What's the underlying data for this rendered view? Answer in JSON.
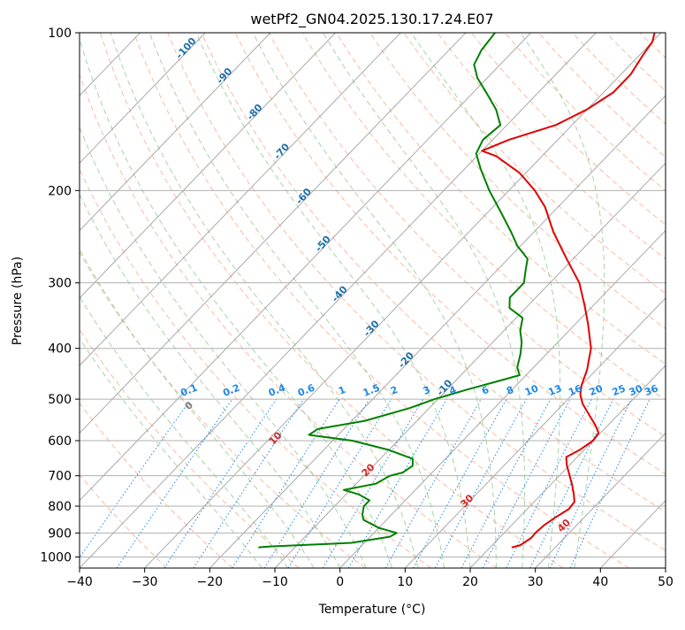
{
  "chart_data": {
    "type": "line",
    "title": "wetPf2_GN04.2025.130.17.24.E07",
    "xlabel": "Temperature (°C)",
    "ylabel": "Pressure (hPa)",
    "xlim": [
      -40,
      50
    ],
    "ylim": [
      1050,
      100
    ],
    "y_scale": "log",
    "skew": "skew-T",
    "grid": true,
    "x_ticks": [
      -40,
      -30,
      -20,
      -10,
      0,
      10,
      20,
      30,
      40,
      50
    ],
    "x_tick_labels": [
      "−40",
      "−30",
      "−20",
      "−10",
      "0",
      "10",
      "20",
      "30",
      "40",
      "50"
    ],
    "y_ticks": [
      100,
      200,
      300,
      400,
      500,
      600,
      700,
      800,
      900,
      1000
    ],
    "y_tick_labels": [
      "100",
      "200",
      "300",
      "400",
      "500",
      "600",
      "700",
      "800",
      "900",
      "1000"
    ],
    "colors": {
      "temperature": "#e00000",
      "dewpoint": "#008000",
      "isotherm": "#9a9a9a",
      "dry_adiabat": "#f4a582",
      "moist_adiabat": "#8fcb8f",
      "mixing_ratio": "#1e88e5",
      "dry_adiabat_label": "#d62728",
      "isotherm_label": "#1f6fa8"
    },
    "series": [
      {
        "key": "temperature",
        "color": "#e00000",
        "points": [
          [
            959,
            23.3
          ],
          [
            950,
            24.3
          ],
          [
            920,
            24.9
          ],
          [
            900,
            24.8
          ],
          [
            870,
            25.0
          ],
          [
            840,
            25.6
          ],
          [
            810,
            26.4
          ],
          [
            785,
            26.2
          ],
          [
            760,
            25.0
          ],
          [
            730,
            23.4
          ],
          [
            700,
            21.6
          ],
          [
            670,
            19.7
          ],
          [
            645,
            18.3
          ],
          [
            625,
            19.3
          ],
          [
            600,
            20.0
          ],
          [
            580,
            19.7
          ],
          [
            560,
            18.0
          ],
          [
            540,
            16.0
          ],
          [
            510,
            12.9
          ],
          [
            490,
            11.2
          ],
          [
            470,
            10.0
          ],
          [
            440,
            8.6
          ],
          [
            400,
            6.0
          ],
          [
            360,
            2.0
          ],
          [
            330,
            -1.5
          ],
          [
            300,
            -5.5
          ],
          [
            270,
            -11.0
          ],
          [
            240,
            -17.0
          ],
          [
            215,
            -22.0
          ],
          [
            200,
            -26.0
          ],
          [
            185,
            -31.0
          ],
          [
            172,
            -37.0
          ],
          [
            168,
            -40.0
          ],
          [
            160,
            -37.5
          ],
          [
            150,
            -32.5
          ],
          [
            140,
            -30.0
          ],
          [
            130,
            -28.5
          ],
          [
            120,
            -28.5
          ],
          [
            110,
            -29.5
          ],
          [
            104,
            -30.0
          ],
          [
            100,
            -31.0
          ]
        ]
      },
      {
        "key": "dewpoint",
        "color": "#008000",
        "points": [
          [
            959,
            -15.6
          ],
          [
            955,
            -14.0
          ],
          [
            940,
            -2.0
          ],
          [
            915,
            3.0
          ],
          [
            900,
            3.5
          ],
          [
            880,
            0.0
          ],
          [
            850,
            -3.5
          ],
          [
            830,
            -4.5
          ],
          [
            800,
            -5.5
          ],
          [
            780,
            -5.5
          ],
          [
            760,
            -8.0
          ],
          [
            745,
            -11.0
          ],
          [
            725,
            -7.0
          ],
          [
            700,
            -6.0
          ],
          [
            690,
            -4.5
          ],
          [
            670,
            -4.0
          ],
          [
            650,
            -5.0
          ],
          [
            625,
            -10.0
          ],
          [
            600,
            -17.0
          ],
          [
            585,
            -24.5
          ],
          [
            570,
            -24.0
          ],
          [
            550,
            -18.0
          ],
          [
            520,
            -13.0
          ],
          [
            500,
            -10.5
          ],
          [
            480,
            -7.0
          ],
          [
            460,
            -3.0
          ],
          [
            450,
            -1.0
          ],
          [
            435,
            -2.5
          ],
          [
            410,
            -4.0
          ],
          [
            390,
            -5.5
          ],
          [
            370,
            -7.5
          ],
          [
            350,
            -9.0
          ],
          [
            335,
            -12.5
          ],
          [
            320,
            -14.0
          ],
          [
            300,
            -14.0
          ],
          [
            285,
            -15.5
          ],
          [
            270,
            -17.0
          ],
          [
            255,
            -20.5
          ],
          [
            240,
            -23.5
          ],
          [
            220,
            -28.0
          ],
          [
            200,
            -33.0
          ],
          [
            182,
            -37.5
          ],
          [
            170,
            -40.5
          ],
          [
            160,
            -41.5
          ],
          [
            150,
            -41.0
          ],
          [
            140,
            -44.0
          ],
          [
            130,
            -48.0
          ],
          [
            122,
            -51.5
          ],
          [
            115,
            -54.0
          ],
          [
            108,
            -55.0
          ],
          [
            100,
            -55.5
          ]
        ]
      }
    ],
    "dry_adiabat_labels": [
      {
        "theta": 0,
        "text": "0",
        "T": 0,
        "p": 520
      },
      {
        "theta": 10,
        "text": "10",
        "T": 0,
        "p": 600
      },
      {
        "theta": 20,
        "text": "20",
        "T": 0,
        "p": 690
      },
      {
        "theta": 30,
        "text": "30",
        "T": 0,
        "p": 790
      },
      {
        "theta": 40,
        "text": "40",
        "T": 0,
        "p": 880
      }
    ],
    "isotherm_labels": [
      {
        "text": "-100",
        "T": -100,
        "p": 108
      },
      {
        "text": "-90",
        "T": -90,
        "p": 122
      },
      {
        "text": "-80",
        "T": -80,
        "p": 143
      },
      {
        "text": "-70",
        "T": -70,
        "p": 170
      },
      {
        "text": "-60",
        "T": -60,
        "p": 207
      },
      {
        "text": "-50",
        "T": -50,
        "p": 255
      },
      {
        "text": "-40",
        "T": -40,
        "p": 318
      },
      {
        "text": "-30",
        "T": -30,
        "p": 370
      },
      {
        "text": "-20",
        "T": -20,
        "p": 425
      },
      {
        "text": "-10",
        "T": -10,
        "p": 480
      }
    ],
    "mixing_ratio_labels": [
      "0.1",
      "0.2",
      "0.4",
      "0.6",
      "1",
      "1.5",
      "2",
      "3",
      "4",
      "6",
      "8",
      "10",
      "13",
      "16",
      "20",
      "25",
      "30",
      "36"
    ],
    "mixing_ratio_label_positions": [
      -23.0,
      -16.5,
      -9.5,
      -5.0,
      0.5,
      5.0,
      8.5,
      13.5,
      17.5,
      22.5,
      26.3,
      29.6,
      33.2,
      36.3,
      39.5,
      43.0,
      45.6,
      48.0
    ]
  }
}
